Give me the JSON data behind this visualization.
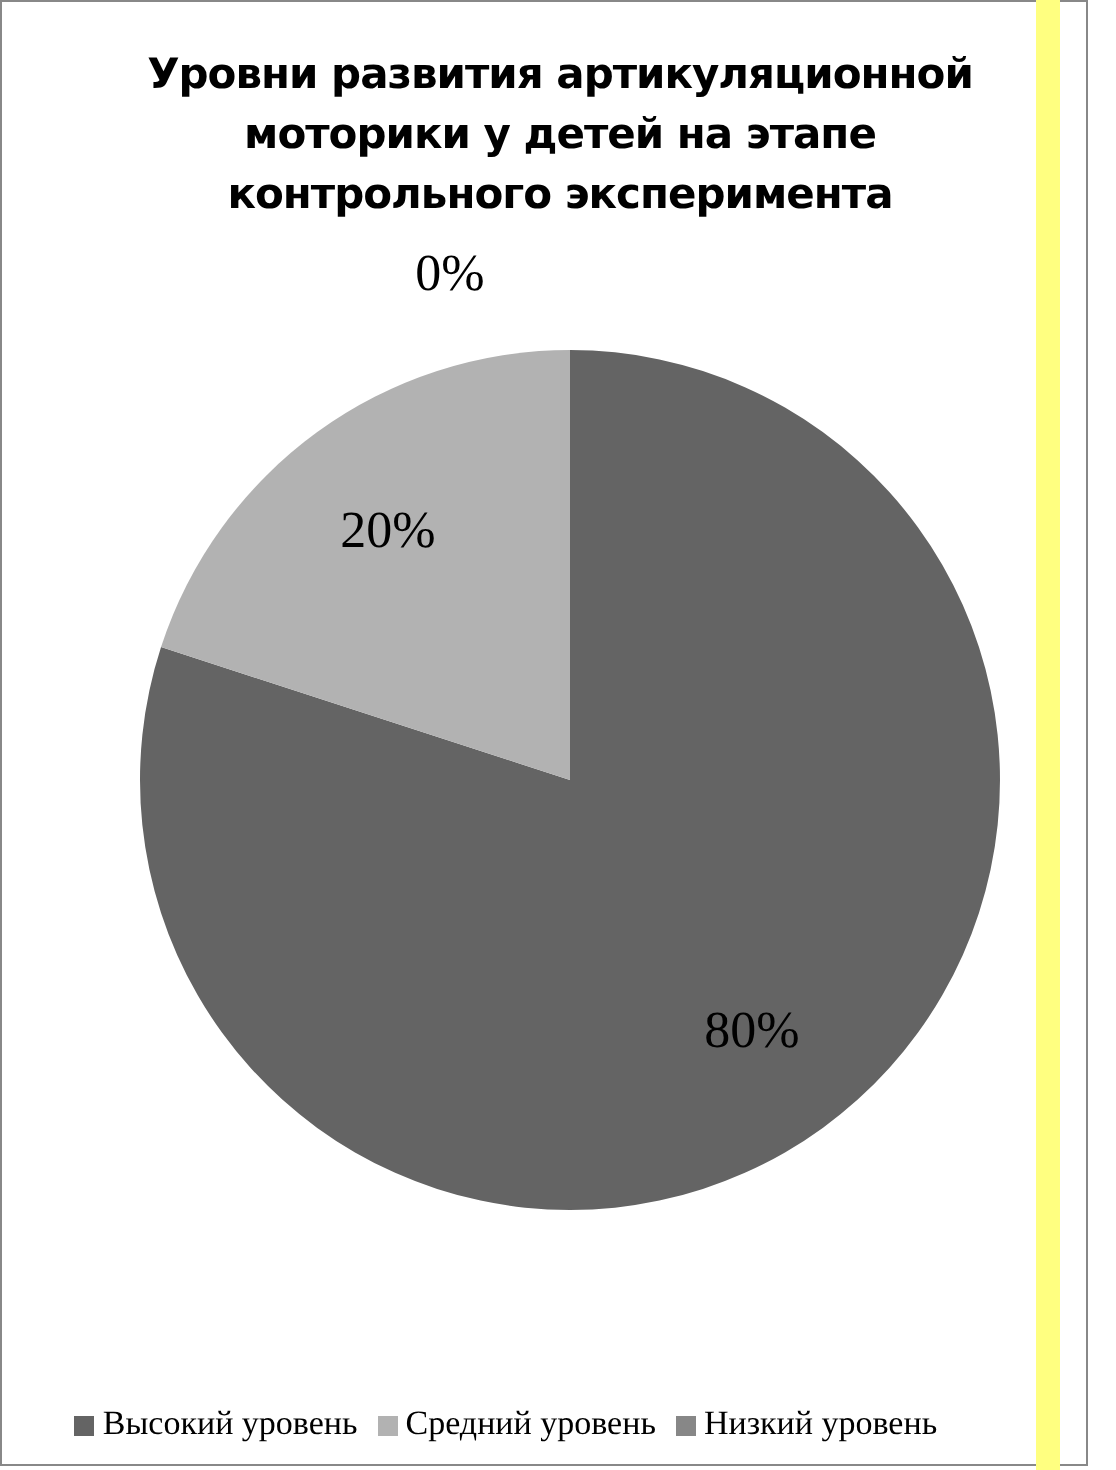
{
  "chart_data": {
    "type": "pie",
    "title": "Уровни развития артикуляционной моторики у детей на этапе контрольного эксперимента",
    "categories": [
      "Высокий уровень",
      "Средний уровень",
      "Низкий уровень"
    ],
    "values": [
      80,
      20,
      0
    ],
    "colors": [
      "#646464",
      "#b2b2b2",
      "#878787"
    ],
    "value_labels": [
      "80%",
      "20%",
      "0%"
    ],
    "legend": "bottom"
  }
}
